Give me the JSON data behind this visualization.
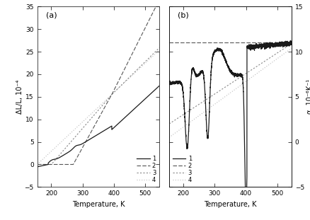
{
  "panel_a": {
    "title": "(a)",
    "xlabel": "Temperature, K",
    "ylabel": "ΔL/L, 10⁻⁴",
    "xlim": [
      155,
      545
    ],
    "ylim": [
      -5,
      35
    ],
    "yticks": [
      -5,
      0,
      5,
      10,
      15,
      20,
      25,
      30,
      35
    ],
    "xticks": [
      200,
      300,
      400,
      500
    ]
  },
  "panel_b": {
    "title": "(b)",
    "xlabel": "Temperature, K",
    "ylabel_right": "α, 10⁻⁶K⁻¹",
    "xlim": [
      155,
      545
    ],
    "ylim": [
      -5,
      15
    ],
    "yticks": [
      -5,
      0,
      5,
      10,
      15
    ],
    "xticks": [
      200,
      300,
      400,
      500
    ]
  },
  "c1": "#1a1a1a",
  "c2": "#555555",
  "c3": "#888888",
  "c4": "#bbbbbb"
}
